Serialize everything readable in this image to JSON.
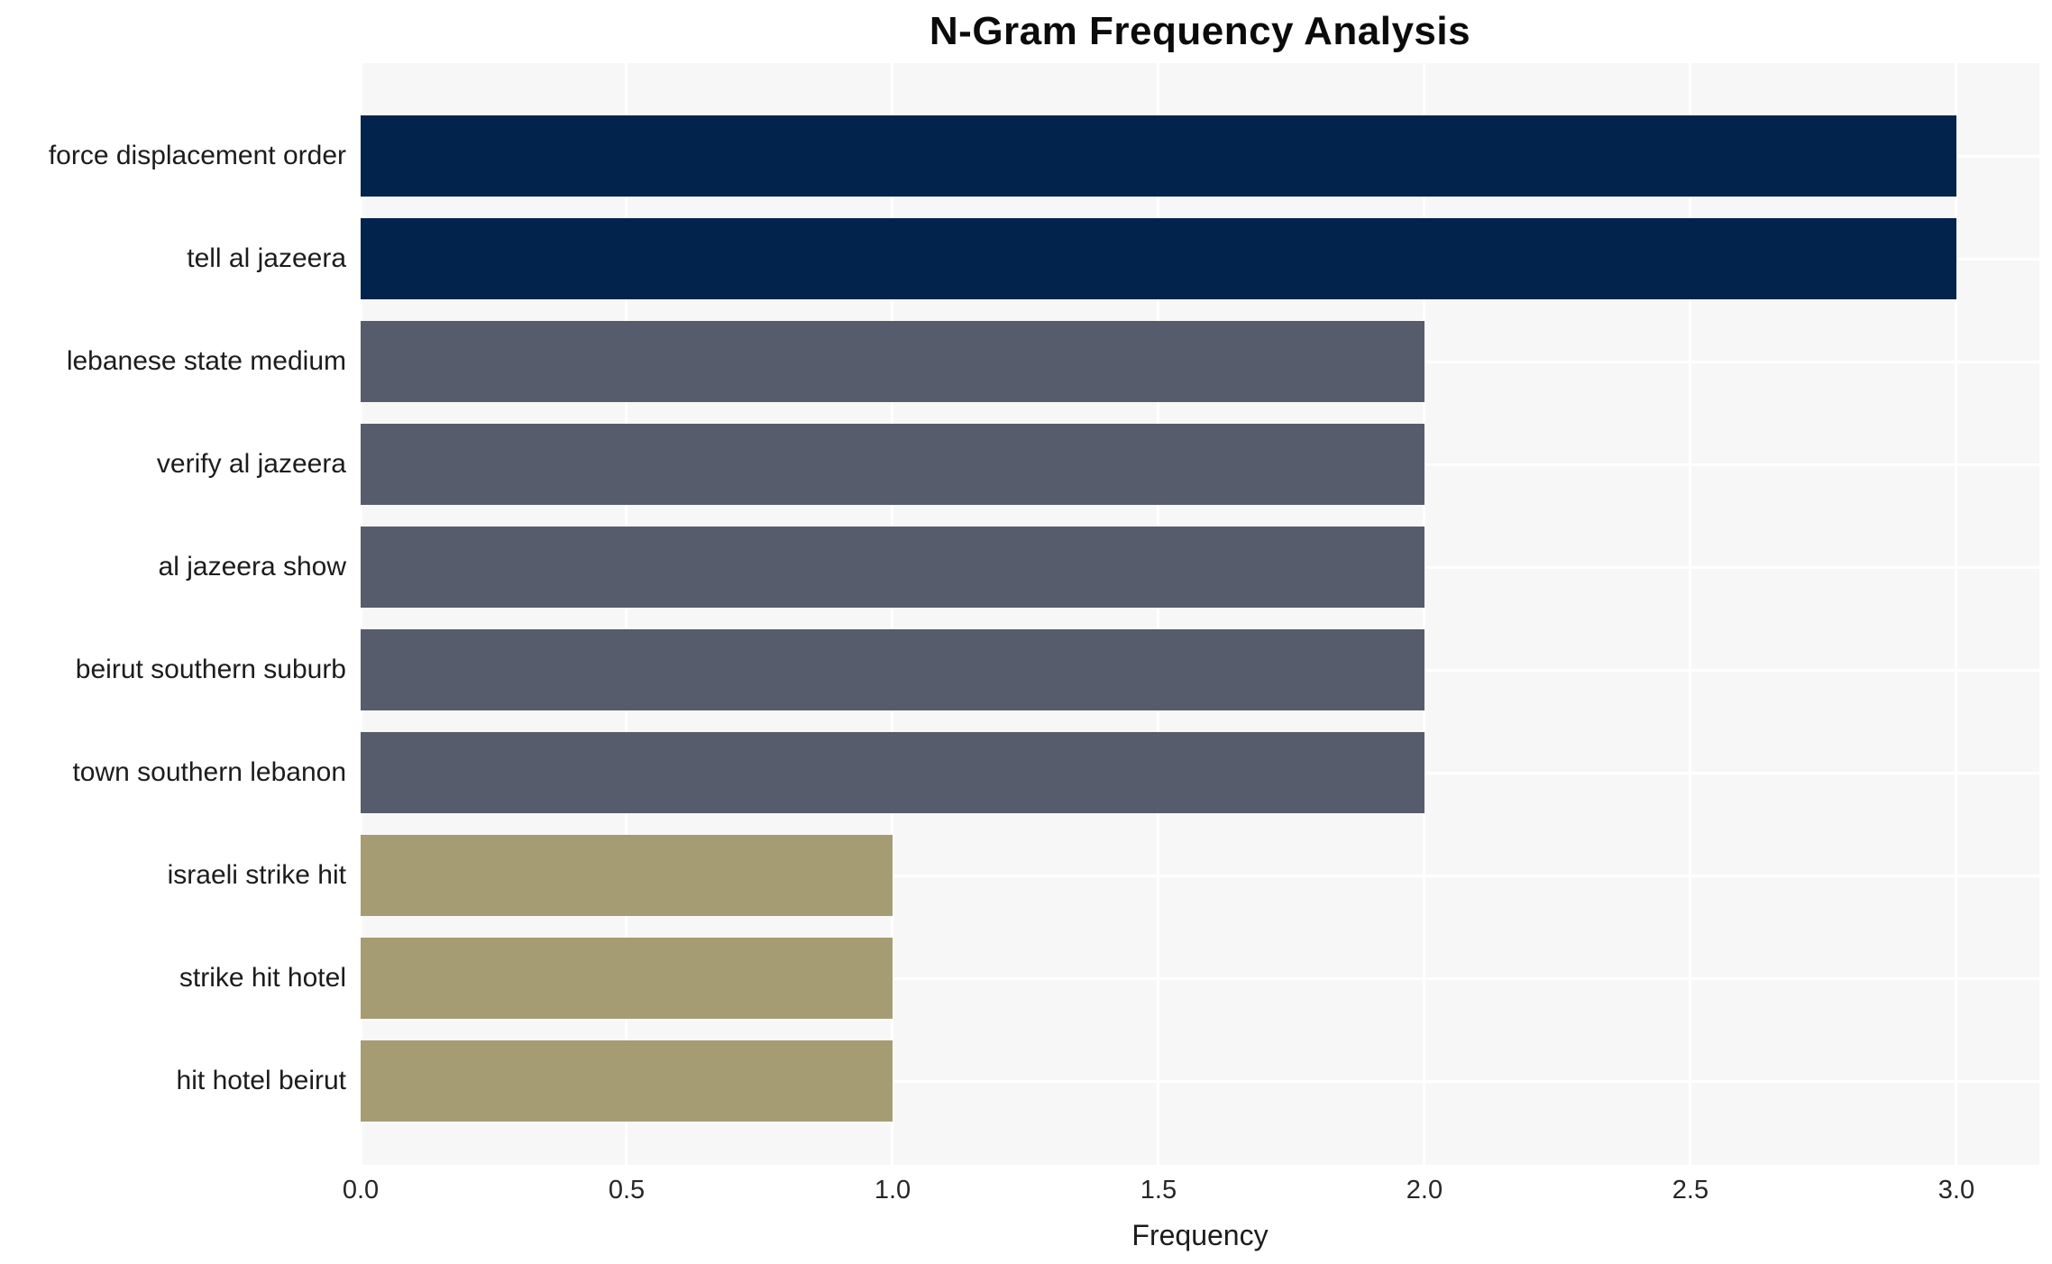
{
  "chart_data": {
    "type": "bar",
    "orientation": "horizontal",
    "title": "N-Gram Frequency Analysis",
    "xlabel": "Frequency",
    "ylabel": "",
    "categories": [
      "force displacement order",
      "tell al jazeera",
      "lebanese state medium",
      "verify al jazeera",
      "al jazeera show",
      "beirut southern suburb",
      "town southern lebanon",
      "israeli strike hit",
      "strike hit hotel",
      "hit hotel beirut"
    ],
    "values": [
      3,
      3,
      2,
      2,
      2,
      2,
      2,
      1,
      1,
      1
    ],
    "bar_colors": [
      "#02234c",
      "#02234c",
      "#575c6c",
      "#575c6c",
      "#575c6c",
      "#575c6c",
      "#575c6c",
      "#a59c73",
      "#a59c73",
      "#a59c73"
    ],
    "xlim": [
      0,
      3.156
    ],
    "xticks": [
      {
        "value": 0.0,
        "label": "0.0"
      },
      {
        "value": 0.5,
        "label": "0.5"
      },
      {
        "value": 1.0,
        "label": "1.0"
      },
      {
        "value": 1.5,
        "label": "1.5"
      },
      {
        "value": 2.0,
        "label": "2.0"
      },
      {
        "value": 2.5,
        "label": "2.5"
      },
      {
        "value": 3.0,
        "label": "3.0"
      }
    ],
    "grid": true,
    "legend": "none"
  },
  "colors": {
    "value_3_bar": "#02234c",
    "value_2_bar": "#575c6c",
    "value_1_bar": "#a59c73",
    "plot_background": "#f7f7f8",
    "gridline": "#ffffff",
    "title_text": "#0b0b0b",
    "label_text": "#1c1c1c"
  }
}
